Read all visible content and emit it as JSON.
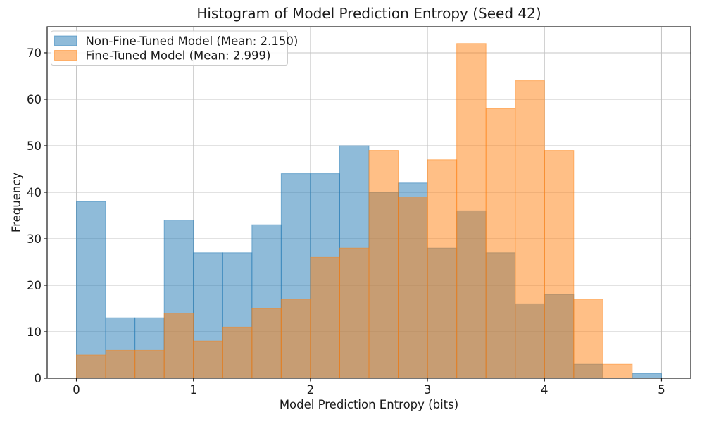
{
  "title": "Histogram of Model Prediction Entropy (Seed 42)",
  "chart_data": {
    "type": "histogram",
    "title": "Histogram of Model Prediction Entropy (Seed 42)",
    "xlabel": "Model Prediction Entropy (bits)",
    "ylabel": "Frequency",
    "bin_start": 0.0,
    "bin_width": 0.25,
    "n_bins": 20,
    "xlim": [
      -0.25,
      5.25
    ],
    "ylim": [
      0,
      75.6
    ],
    "xticks": [
      0,
      1,
      2,
      3,
      4,
      5
    ],
    "yticks": [
      0,
      10,
      20,
      30,
      40,
      50,
      60,
      70
    ],
    "grid": true,
    "legend_position": "upper-left",
    "bar_alpha": 0.5,
    "series": [
      {
        "name": "Non-Fine-Tuned Model (Mean: 2.150)",
        "color": "#1f77b4",
        "mean": 2.15,
        "values": [
          38,
          13,
          13,
          34,
          27,
          27,
          33,
          44,
          44,
          50,
          40,
          42,
          28,
          36,
          27,
          16,
          18,
          3,
          0,
          1
        ]
      },
      {
        "name": "Fine-Tuned Model (Mean: 2.999)",
        "color": "#ff7f0e",
        "mean": 2.999,
        "values": [
          5,
          6,
          6,
          14,
          8,
          11,
          15,
          17,
          26,
          28,
          49,
          39,
          47,
          72,
          58,
          64,
          49,
          17,
          3,
          0
        ]
      }
    ],
    "colors": {
      "grid": "#c4c4c4",
      "spine": "#1a1a1a",
      "legend_border": "#cccccc",
      "legend_bg": "#ffffff",
      "background": "#ffffff"
    }
  }
}
